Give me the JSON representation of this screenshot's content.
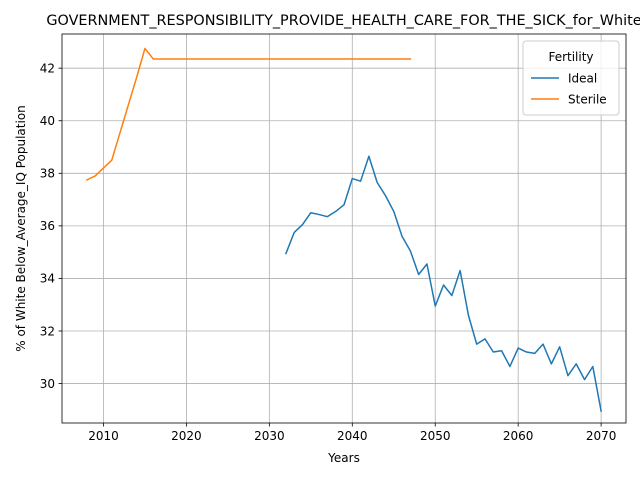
{
  "chart_data": {
    "type": "line",
    "title": "GOVERNMENT_RESPONSIBILITY_PROVIDE_HEALTH_CARE_FOR_THE_SICK_for_White",
    "xlabel": "Years",
    "ylabel": "% of White Below_Average_IQ Population",
    "xlim": [
      2005,
      2073
    ],
    "ylim": [
      28.5,
      43.3
    ],
    "xticks": [
      2010,
      2020,
      2030,
      2040,
      2050,
      2060,
      2070
    ],
    "yticks": [
      30,
      32,
      34,
      36,
      38,
      40,
      42
    ],
    "grid": true,
    "legend": {
      "title": "Fertility",
      "placement": "top-right"
    },
    "series": [
      {
        "name": "Ideal",
        "color": "#1f77b4",
        "x": [
          2032,
          2033,
          2034,
          2035,
          2036,
          2037,
          2038,
          2039,
          2040,
          2041,
          2042,
          2043,
          2044,
          2045,
          2046,
          2047,
          2048,
          2049,
          2050,
          2051,
          2052,
          2053,
          2054,
          2055,
          2056,
          2057,
          2058,
          2059,
          2060,
          2061,
          2062,
          2063,
          2064,
          2065,
          2066,
          2067,
          2068,
          2069,
          2070
        ],
        "y": [
          34.95,
          35.75,
          36.05,
          36.5,
          36.43,
          36.35,
          36.55,
          36.8,
          37.8,
          37.7,
          38.65,
          37.65,
          37.15,
          36.55,
          35.6,
          35.05,
          34.15,
          34.55,
          32.95,
          33.75,
          33.35,
          34.3,
          32.6,
          31.5,
          31.7,
          31.2,
          31.25,
          30.65,
          31.35,
          31.2,
          31.15,
          31.5,
          30.75,
          31.4,
          30.3,
          30.75,
          30.15,
          30.65,
          28.95
        ]
      },
      {
        "name": "Sterile",
        "color": "#ff7f0e",
        "x": [
          2008,
          2009,
          2010,
          2011,
          2012,
          2013,
          2014,
          2015,
          2016,
          2017,
          2018,
          2019,
          2020,
          2025,
          2030,
          2035,
          2040,
          2045,
          2047
        ],
        "y": [
          37.75,
          37.9,
          38.2,
          38.5,
          39.55,
          40.6,
          41.65,
          42.75,
          42.35,
          42.35,
          42.35,
          42.35,
          42.35,
          42.35,
          42.35,
          42.35,
          42.35,
          42.35,
          42.35
        ]
      }
    ]
  }
}
